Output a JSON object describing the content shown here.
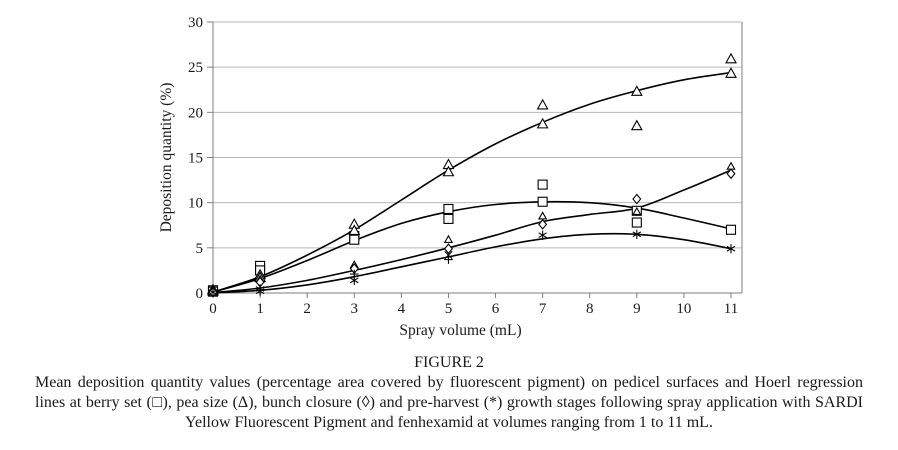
{
  "figure": {
    "caption_title": "FIGURE 2",
    "caption_lines": [
      "Mean deposition quantity values (percentage area covered by fluorescent pigment) on pedicel surfaces and Hoerl regression",
      "lines at berry set (□), pea size (Δ), bunch closure (◊) and pre-harvest (*) growth stages following spray application with SARDI",
      "Yellow Fluorescent Pigment and fenhexamid at volumes ranging from 1 to 11 mL."
    ]
  },
  "chart_data": {
    "type": "scatter",
    "title": "",
    "xlabel": "Spray volume (mL)",
    "ylabel": "Deposition quantity (%)",
    "xlim": [
      0,
      11
    ],
    "ylim": [
      0,
      30
    ],
    "xticks": [
      0,
      1,
      2,
      3,
      4,
      5,
      6,
      7,
      8,
      9,
      10,
      11
    ],
    "yticks": [
      0,
      5,
      10,
      15,
      20,
      25,
      30
    ],
    "grid": "horizontal-gridlines",
    "legend_position": "none (markers defined in caption)",
    "regression_model": "Hoerl regression lines",
    "series": [
      {
        "name": "berry set",
        "marker": "square",
        "points": [
          {
            "x": 0,
            "y": 0.3
          },
          {
            "x": 0,
            "y": 0.15
          },
          {
            "x": 1,
            "y": 3.0
          },
          {
            "x": 1,
            "y": 2.5
          },
          {
            "x": 3,
            "y": 6.3
          },
          {
            "x": 3,
            "y": 5.9
          },
          {
            "x": 5,
            "y": 9.3
          },
          {
            "x": 5,
            "y": 8.2
          },
          {
            "x": 7,
            "y": 12.0
          },
          {
            "x": 7,
            "y": 10.1
          },
          {
            "x": 9,
            "y": 9.1
          },
          {
            "x": 9,
            "y": 7.8
          },
          {
            "x": 11,
            "y": 7.0
          }
        ],
        "curve_x": [
          0,
          1,
          2,
          3,
          4,
          5,
          6,
          7,
          8,
          9,
          10,
          11
        ],
        "curve_y": [
          0.1,
          1.6,
          3.6,
          5.8,
          7.7,
          9.0,
          9.8,
          10.1,
          10.0,
          9.4,
          8.3,
          7.1
        ]
      },
      {
        "name": "pea size",
        "marker": "triangle",
        "points": [
          {
            "x": 0,
            "y": 0.35
          },
          {
            "x": 0,
            "y": 0.2
          },
          {
            "x": 1,
            "y": 2.0
          },
          {
            "x": 1,
            "y": 1.7
          },
          {
            "x": 3,
            "y": 7.6
          },
          {
            "x": 3,
            "y": 6.9
          },
          {
            "x": 5,
            "y": 14.2
          },
          {
            "x": 5,
            "y": 13.4
          },
          {
            "x": 7,
            "y": 20.8
          },
          {
            "x": 7,
            "y": 18.7
          },
          {
            "x": 9,
            "y": 22.3
          },
          {
            "x": 9,
            "y": 18.5
          },
          {
            "x": 11,
            "y": 25.9
          },
          {
            "x": 11,
            "y": 24.3
          }
        ],
        "curve_x": [
          0,
          1,
          2,
          3,
          4,
          5,
          6,
          7,
          8,
          9,
          10,
          11
        ],
        "curve_y": [
          0.1,
          1.8,
          4.2,
          7.0,
          10.3,
          13.6,
          16.5,
          18.9,
          20.9,
          22.4,
          23.6,
          24.4
        ]
      },
      {
        "name": "bunch closure",
        "marker": "diamond",
        "points": [
          {
            "x": 0,
            "y": 0.2
          },
          {
            "x": 0,
            "y": 0.1
          },
          {
            "x": 1,
            "y": 1.5,
            "m": "triangle-small"
          },
          {
            "x": 1,
            "y": 1.2
          },
          {
            "x": 3,
            "y": 3.1,
            "m": "triangle-small"
          },
          {
            "x": 3,
            "y": 2.7
          },
          {
            "x": 5,
            "y": 5.9,
            "m": "triangle-small"
          },
          {
            "x": 5,
            "y": 4.9
          },
          {
            "x": 7,
            "y": 8.5,
            "m": "triangle-small"
          },
          {
            "x": 7,
            "y": 7.6
          },
          {
            "x": 9,
            "y": 10.4
          },
          {
            "x": 9,
            "y": 9.0,
            "m": "triangle-small"
          },
          {
            "x": 11,
            "y": 14.0,
            "m": "triangle-small"
          },
          {
            "x": 11,
            "y": 13.2
          }
        ],
        "curve_x": [
          0,
          1,
          2,
          3,
          4,
          5,
          6,
          7,
          8,
          9,
          10,
          11
        ],
        "curve_y": [
          0.05,
          0.55,
          1.4,
          2.5,
          3.7,
          5.0,
          6.4,
          7.9,
          8.7,
          9.4,
          11.4,
          13.6
        ]
      },
      {
        "name": "pre-harvest",
        "marker": "asterisk",
        "points": [
          {
            "x": 0,
            "y": 0.1
          },
          {
            "x": 1,
            "y": 0.45
          },
          {
            "x": 1,
            "y": 0.2
          },
          {
            "x": 3,
            "y": 2.1,
            "m": "plus"
          },
          {
            "x": 3,
            "y": 1.4
          },
          {
            "x": 5,
            "y": 4.2,
            "m": "x"
          },
          {
            "x": 5,
            "y": 3.7,
            "m": "plus"
          },
          {
            "x": 7,
            "y": 6.4
          },
          {
            "x": 9,
            "y": 6.5
          },
          {
            "x": 11,
            "y": 4.9
          }
        ],
        "curve_x": [
          0,
          1,
          2,
          3,
          4,
          5,
          6,
          7,
          8,
          9,
          10,
          11
        ],
        "curve_y": [
          0.02,
          0.3,
          0.9,
          1.8,
          2.9,
          4.0,
          5.1,
          6.0,
          6.5,
          6.5,
          5.9,
          4.9
        ]
      }
    ],
    "colors": {
      "curves": "#000000",
      "markers": "#000000",
      "gridlines": "#b9b9b9",
      "axis": "#7f7f7f",
      "text": "#1a1a1a"
    }
  }
}
